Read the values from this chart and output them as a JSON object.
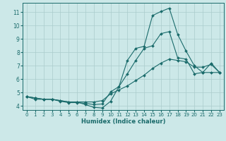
{
  "xlabel": "Humidex (Indice chaleur)",
  "background_color": "#cce8e8",
  "grid_color": "#aacccc",
  "line_color": "#1a6b6b",
  "xlim": [
    -0.5,
    23.5
  ],
  "ylim": [
    3.7,
    11.7
  ],
  "yticks": [
    4,
    5,
    6,
    7,
    8,
    9,
    10,
    11
  ],
  "xticks": [
    0,
    1,
    2,
    3,
    4,
    5,
    6,
    7,
    8,
    9,
    10,
    11,
    12,
    13,
    14,
    15,
    16,
    17,
    18,
    19,
    20,
    21,
    22,
    23
  ],
  "series": [
    {
      "x": [
        0,
        1,
        2,
        3,
        4,
        5,
        6,
        7,
        8,
        9,
        10,
        11,
        12,
        13,
        14,
        15,
        16,
        17,
        18,
        19,
        20,
        21,
        22,
        23
      ],
      "y": [
        4.7,
        4.6,
        4.5,
        4.5,
        4.4,
        4.3,
        4.3,
        4.1,
        3.9,
        3.85,
        4.35,
        5.45,
        7.4,
        8.3,
        8.45,
        10.75,
        11.05,
        11.3,
        9.35,
        8.1,
        7.0,
        6.5,
        7.2,
        6.5
      ]
    },
    {
      "x": [
        0,
        1,
        2,
        3,
        4,
        5,
        6,
        7,
        8,
        9,
        10,
        11,
        12,
        13,
        14,
        15,
        16,
        17,
        18,
        19,
        20,
        21,
        22,
        23
      ],
      "y": [
        4.7,
        4.5,
        4.5,
        4.5,
        4.35,
        4.25,
        4.25,
        4.2,
        4.1,
        4.15,
        5.05,
        5.45,
        6.4,
        7.4,
        8.3,
        8.5,
        9.4,
        9.55,
        7.6,
        7.5,
        6.4,
        6.5,
        6.5,
        6.5
      ]
    },
    {
      "x": [
        0,
        1,
        2,
        3,
        4,
        5,
        6,
        7,
        8,
        9,
        10,
        11,
        12,
        13,
        14,
        15,
        16,
        17,
        18,
        19,
        20,
        21,
        22,
        23
      ],
      "y": [
        4.7,
        4.6,
        4.5,
        4.5,
        4.4,
        4.3,
        4.3,
        4.3,
        4.3,
        4.4,
        4.9,
        5.2,
        5.5,
        5.9,
        6.3,
        6.8,
        7.2,
        7.5,
        7.4,
        7.3,
        6.9,
        6.9,
        7.1,
        6.5
      ]
    }
  ]
}
